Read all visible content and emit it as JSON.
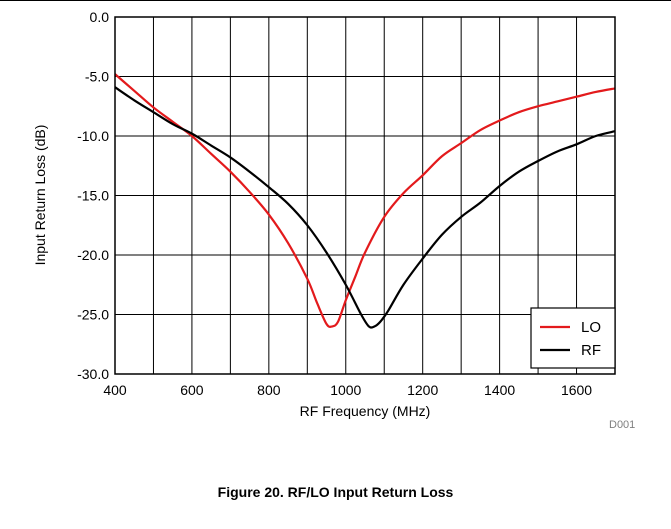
{
  "chart_data": {
    "type": "line",
    "xlabel": "RF Frequency (MHz)",
    "ylabel": "Input Return Loss (dB)",
    "xlim": [
      400,
      1700
    ],
    "ylim": [
      -30,
      0
    ],
    "xticks": [
      400,
      600,
      800,
      1000,
      1200,
      1400,
      1600
    ],
    "xtick_labels": [
      "400",
      "600",
      "800",
      "1000",
      "1200",
      "1400",
      "1600"
    ],
    "yticks": [
      0,
      -5,
      -10,
      -15,
      -20,
      -25,
      -30
    ],
    "ytick_labels": [
      "0.0",
      "-5.0",
      "-10.0",
      "-15.0",
      "-20.0",
      "-25.0",
      "-30.0"
    ],
    "x_gridlines": [
      400,
      500,
      600,
      700,
      800,
      900,
      1000,
      1100,
      1200,
      1300,
      1400,
      1500,
      1600,
      1700
    ],
    "grid": true,
    "legend_position": "bottom-right",
    "series": [
      {
        "name": "LO",
        "color": "#e31a1c",
        "points": [
          [
            400,
            -4.8
          ],
          [
            450,
            -6.2
          ],
          [
            500,
            -7.6
          ],
          [
            550,
            -8.8
          ],
          [
            600,
            -10.0
          ],
          [
            650,
            -11.5
          ],
          [
            700,
            -13.0
          ],
          [
            750,
            -14.7
          ],
          [
            800,
            -16.6
          ],
          [
            850,
            -19.0
          ],
          [
            900,
            -22.0
          ],
          [
            925,
            -24.0
          ],
          [
            950,
            -25.8
          ],
          [
            965,
            -26.0
          ],
          [
            980,
            -25.6
          ],
          [
            1000,
            -23.8
          ],
          [
            1025,
            -21.8
          ],
          [
            1050,
            -19.8
          ],
          [
            1100,
            -16.8
          ],
          [
            1150,
            -14.8
          ],
          [
            1200,
            -13.3
          ],
          [
            1250,
            -11.7
          ],
          [
            1300,
            -10.6
          ],
          [
            1350,
            -9.5
          ],
          [
            1400,
            -8.7
          ],
          [
            1450,
            -8.0
          ],
          [
            1500,
            -7.5
          ],
          [
            1550,
            -7.1
          ],
          [
            1600,
            -6.7
          ],
          [
            1650,
            -6.3
          ],
          [
            1700,
            -6.0
          ]
        ]
      },
      {
        "name": "RF",
        "color": "#000000",
        "points": [
          [
            400,
            -5.9
          ],
          [
            450,
            -7.0
          ],
          [
            500,
            -8.0
          ],
          [
            550,
            -9.0
          ],
          [
            600,
            -9.8
          ],
          [
            650,
            -10.8
          ],
          [
            700,
            -11.8
          ],
          [
            750,
            -13.0
          ],
          [
            800,
            -14.3
          ],
          [
            850,
            -15.7
          ],
          [
            900,
            -17.5
          ],
          [
            950,
            -19.8
          ],
          [
            1000,
            -22.5
          ],
          [
            1040,
            -25.0
          ],
          [
            1060,
            -26.0
          ],
          [
            1075,
            -26.0
          ],
          [
            1090,
            -25.6
          ],
          [
            1110,
            -24.7
          ],
          [
            1150,
            -22.5
          ],
          [
            1200,
            -20.3
          ],
          [
            1250,
            -18.3
          ],
          [
            1300,
            -16.8
          ],
          [
            1350,
            -15.6
          ],
          [
            1400,
            -14.2
          ],
          [
            1450,
            -13.0
          ],
          [
            1500,
            -12.1
          ],
          [
            1550,
            -11.3
          ],
          [
            1600,
            -10.7
          ],
          [
            1650,
            -10.0
          ],
          [
            1700,
            -9.6
          ]
        ]
      }
    ]
  },
  "legend": {
    "lo_label": "LO",
    "rf_label": "RF"
  },
  "figure_id": "D001",
  "caption": "Figure 20. RF/LO Input Return Loss"
}
